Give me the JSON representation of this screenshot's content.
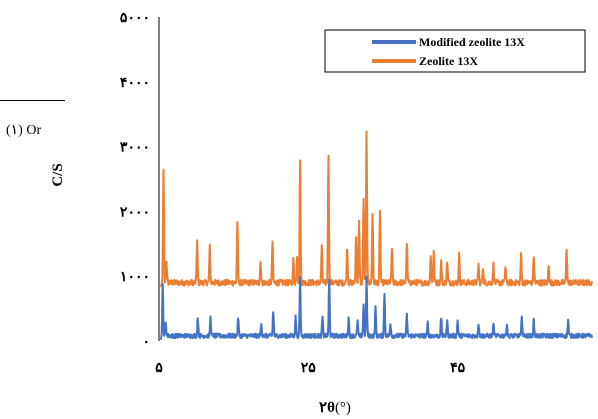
{
  "page_fragment": {
    "text": "(۱) Or"
  },
  "chart_data": {
    "type": "line",
    "xlabel_main": "۲θ",
    "xlabel_unit": "(°)",
    "ylabel": "C/S",
    "xlim": [
      5,
      63
    ],
    "ylim": [
      0,
      5000
    ],
    "x_ticks": [
      {
        "value": 5,
        "label": "۵"
      },
      {
        "value": 25,
        "label": "۲۵"
      },
      {
        "value": 45,
        "label": "۴۵"
      }
    ],
    "y_ticks": [
      {
        "value": 0,
        "label": "۰"
      },
      {
        "value": 1000,
        "label": "۱۰۰۰"
      },
      {
        "value": 2000,
        "label": "۲۰۰۰"
      },
      {
        "value": 3000,
        "label": "۳۰۰۰"
      },
      {
        "value": 4000,
        "label": "۴۰۰۰"
      },
      {
        "value": 5000,
        "label": "۵۰۰۰"
      }
    ],
    "legend_position": "top-right",
    "series": [
      {
        "name": "Modified zeolite 13X",
        "color": "#4472C4",
        "baseline": 80,
        "peaks": [
          [
            5.5,
            780
          ],
          [
            5.9,
            220
          ],
          [
            10.2,
            280
          ],
          [
            11.9,
            280
          ],
          [
            15.6,
            290
          ],
          [
            18.7,
            200
          ],
          [
            20.3,
            380
          ],
          [
            23.3,
            290
          ],
          [
            23.9,
            890
          ],
          [
            26.9,
            280
          ],
          [
            27.8,
            860
          ],
          [
            30.4,
            280
          ],
          [
            31.6,
            230
          ],
          [
            32.4,
            470
          ],
          [
            32.8,
            900
          ],
          [
            34.0,
            430
          ],
          [
            35.2,
            670
          ],
          [
            36.0,
            200
          ],
          [
            38.2,
            320
          ],
          [
            41.0,
            200
          ],
          [
            42.8,
            280
          ],
          [
            43.6,
            230
          ],
          [
            45.0,
            230
          ],
          [
            47.8,
            200
          ],
          [
            49.8,
            180
          ],
          [
            51.6,
            180
          ],
          [
            53.6,
            280
          ],
          [
            55.2,
            230
          ],
          [
            59.8,
            250
          ]
        ]
      },
      {
        "name": "Zeolite 13X",
        "color": "#ED7D31",
        "baseline": 900,
        "peaks": [
          [
            5.6,
            1750
          ],
          [
            6.0,
            350
          ],
          [
            10.1,
            650
          ],
          [
            11.8,
            550
          ],
          [
            15.5,
            950
          ],
          [
            18.6,
            320
          ],
          [
            20.2,
            640
          ],
          [
            23.0,
            350
          ],
          [
            23.5,
            420
          ],
          [
            23.9,
            1850
          ],
          [
            26.8,
            550
          ],
          [
            27.7,
            2000
          ],
          [
            30.2,
            550
          ],
          [
            31.4,
            700
          ],
          [
            31.8,
            950
          ],
          [
            32.4,
            1300
          ],
          [
            32.8,
            2300
          ],
          [
            33.6,
            1050
          ],
          [
            34.6,
            1080
          ],
          [
            36.2,
            550
          ],
          [
            38.2,
            620
          ],
          [
            41.4,
            440
          ],
          [
            41.8,
            480
          ],
          [
            42.8,
            320
          ],
          [
            43.6,
            340
          ],
          [
            45.2,
            440
          ],
          [
            47.8,
            280
          ],
          [
            48.4,
            240
          ],
          [
            49.8,
            280
          ],
          [
            51.4,
            250
          ],
          [
            53.5,
            420
          ],
          [
            55.2,
            420
          ],
          [
            57.2,
            280
          ],
          [
            59.6,
            520
          ]
        ]
      }
    ]
  }
}
